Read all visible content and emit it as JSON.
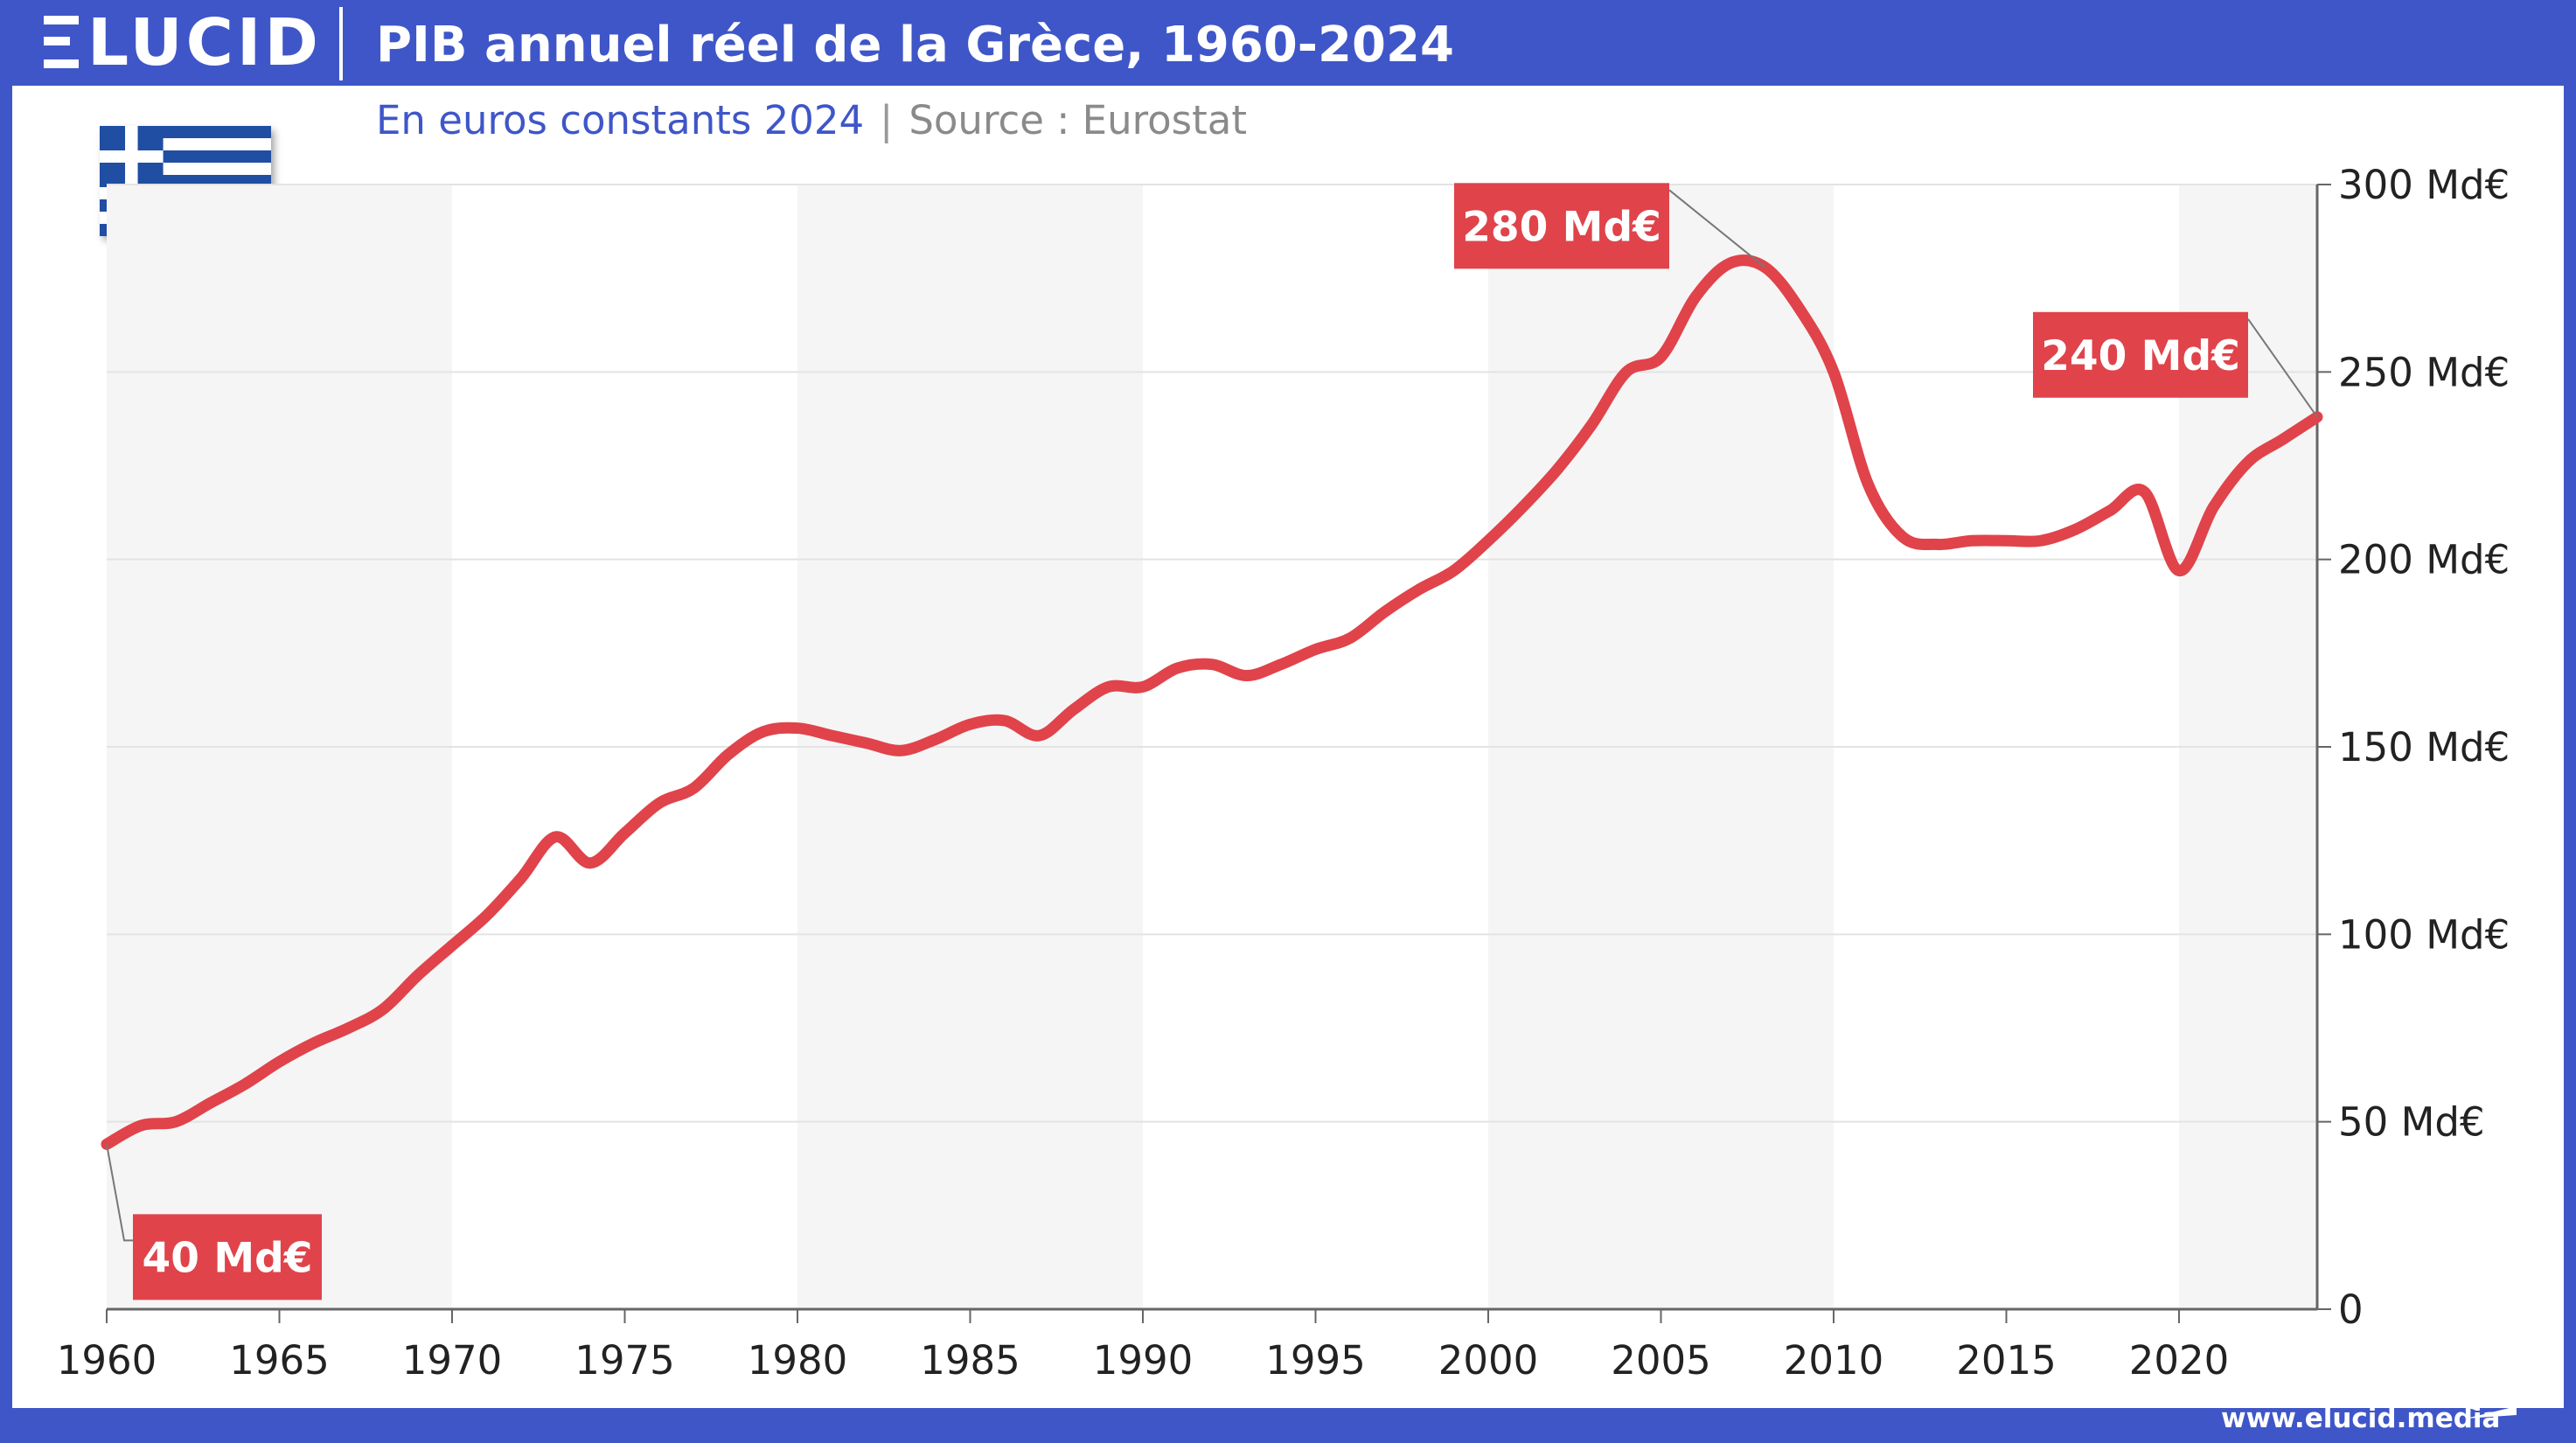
{
  "brand": {
    "logo_text": "LUCID",
    "url": "www.elucid.media"
  },
  "header": {
    "title": "PIB annuel réel de la Grèce, 1960-2024",
    "subtitle_unit": "En euros constants 2024",
    "subtitle_separator": "|",
    "subtitle_source": "Source : Eurostat"
  },
  "flag": {
    "icon": "greece-flag-icon",
    "colors": [
      "#1f4ea3",
      "#ffffff"
    ]
  },
  "colors": {
    "frame": "#3f56c8",
    "line": "#e0434a",
    "callout": "#e0434a",
    "band": "#f5f5f5",
    "grid": "#e3e3e3"
  },
  "chart_data": {
    "type": "line",
    "title": "PIB annuel réel de la Grèce, 1960-2024",
    "xlabel": "",
    "ylabel": "",
    "xlim": [
      1960,
      2024
    ],
    "ylim": [
      0,
      300
    ],
    "grid": true,
    "x_ticks": [
      1960,
      1965,
      1970,
      1975,
      1980,
      1985,
      1990,
      1995,
      2000,
      2005,
      2010,
      2015,
      2020
    ],
    "x_tick_labels": [
      "1960",
      "1965",
      "1970",
      "1975",
      "1980",
      "1985",
      "1990",
      "1995",
      "2000",
      "2005",
      "2010",
      "2015",
      "2020"
    ],
    "y_ticks": [
      0,
      50,
      100,
      150,
      200,
      250,
      300
    ],
    "y_tick_labels": [
      "0",
      "50 Md€",
      "100 Md€",
      "150 Md€",
      "200 Md€",
      "250 Md€",
      "300 Md€"
    ],
    "x": [
      1960,
      1961,
      1962,
      1963,
      1964,
      1965,
      1966,
      1967,
      1968,
      1969,
      1970,
      1971,
      1972,
      1973,
      1974,
      1975,
      1976,
      1977,
      1978,
      1979,
      1980,
      1981,
      1982,
      1983,
      1984,
      1985,
      1986,
      1987,
      1988,
      1989,
      1990,
      1991,
      1992,
      1993,
      1994,
      1995,
      1996,
      1997,
      1998,
      1999,
      2000,
      2001,
      2002,
      2003,
      2004,
      2005,
      2006,
      2007,
      2008,
      2009,
      2010,
      2011,
      2012,
      2013,
      2014,
      2015,
      2016,
      2017,
      2018,
      2019,
      2020,
      2021,
      2022,
      2023,
      2024
    ],
    "series": [
      {
        "values": [
          44,
          49,
          50,
          55,
          60,
          66,
          71,
          75,
          80,
          89,
          97,
          105,
          115,
          126,
          119,
          127,
          135,
          139,
          148,
          154,
          155,
          153,
          151,
          149,
          152,
          156,
          157,
          153,
          160,
          166,
          166,
          171,
          172,
          169,
          172,
          176,
          179,
          186,
          192,
          197,
          205,
          214,
          224,
          236,
          250,
          254,
          270,
          279,
          278,
          267,
          250,
          220,
          206,
          204,
          205,
          205,
          205,
          208,
          213,
          218,
          197,
          214,
          226,
          232,
          238
        ]
      }
    ],
    "callouts": [
      {
        "year": 1960,
        "text": "40 Md€"
      },
      {
        "year": 2008,
        "text": "280 Md€"
      },
      {
        "year": 2024,
        "text": "240 Md€"
      }
    ]
  }
}
